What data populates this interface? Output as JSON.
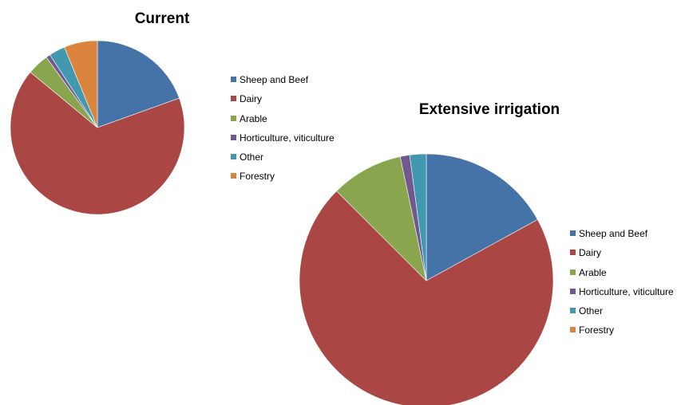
{
  "chart_data": [
    {
      "type": "pie",
      "title": "Current",
      "categories": [
        "Sheep and Beef",
        "Dairy",
        "Arable",
        "Horticulture, viticulture",
        "Other",
        "Forestry"
      ],
      "values": [
        19.5,
        66.5,
        4.0,
        0.8,
        3.0,
        6.2
      ],
      "units": "percent",
      "start_angle_deg": 0,
      "direction": "clockwise",
      "legend_position": "right",
      "colors": [
        "#4572A7",
        "#AA4643",
        "#89A54E",
        "#71588F",
        "#4198AF",
        "#DB843D"
      ]
    },
    {
      "type": "pie",
      "title": "Extensive irrigation",
      "categories": [
        "Sheep and Beef",
        "Dairy",
        "Arable",
        "Horticulture, viticulture",
        "Other",
        "Forestry"
      ],
      "values": [
        17.0,
        70.5,
        9.2,
        1.2,
        2.1,
        0.0
      ],
      "units": "percent",
      "start_angle_deg": 0,
      "direction": "clockwise",
      "legend_position": "right",
      "colors": [
        "#4572A7",
        "#AA4643",
        "#89A54E",
        "#71588F",
        "#4198AF",
        "#DB843D"
      ]
    }
  ]
}
